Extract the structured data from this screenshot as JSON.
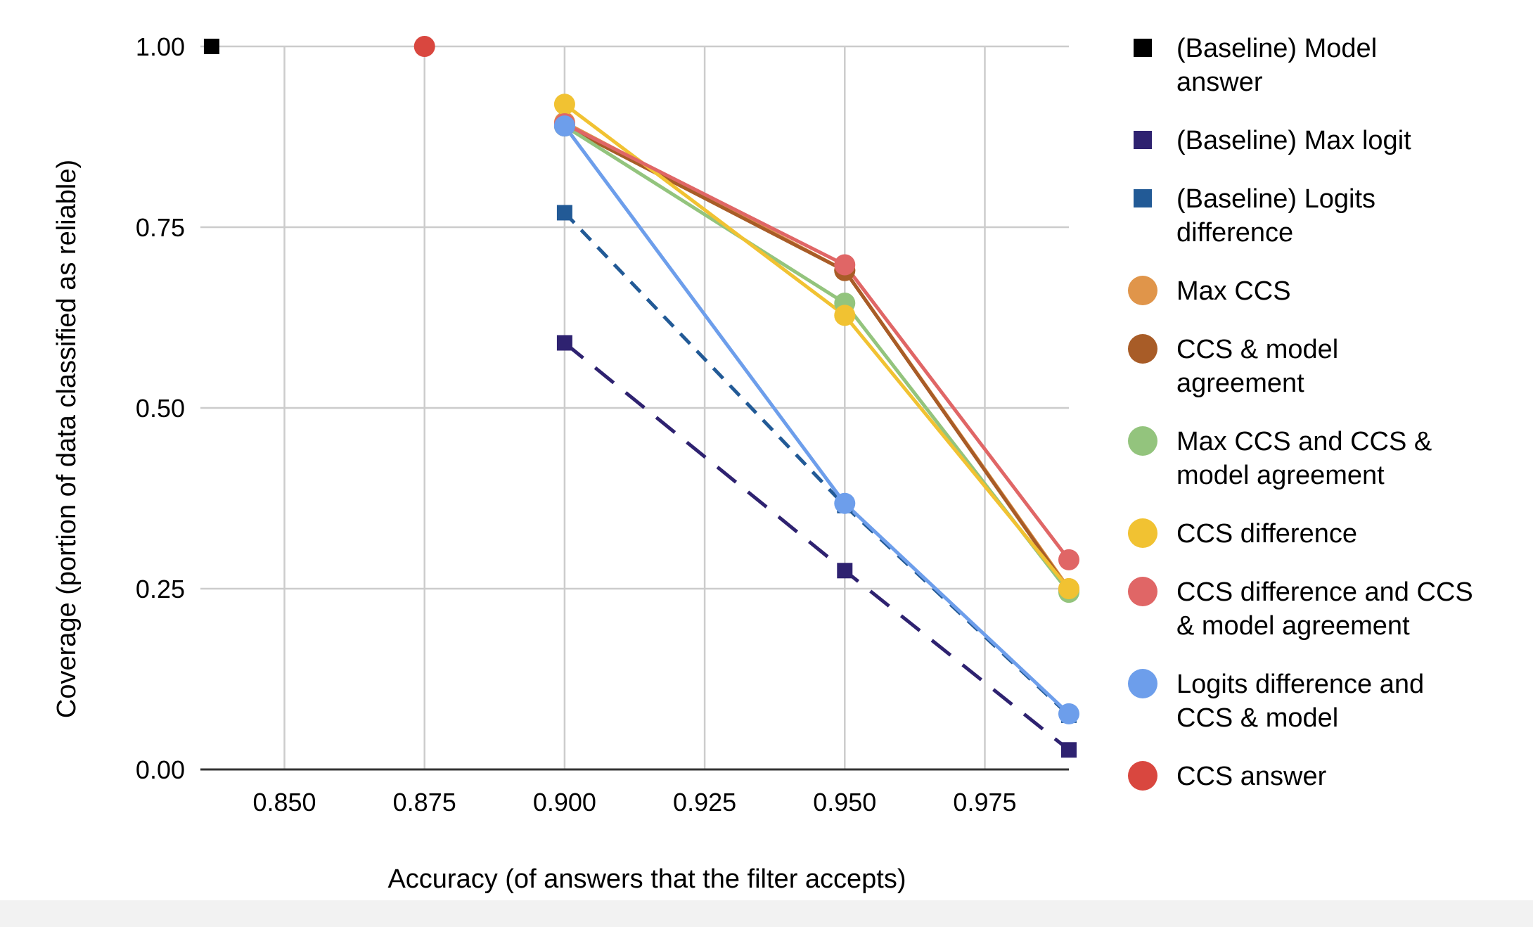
{
  "chart_data": {
    "type": "line",
    "title": "",
    "xlabel": "Accuracy (of answers that the filter accepts)",
    "ylabel": "Coverage (portion of data classified as reliable)",
    "xlim": [
      0.835,
      0.99
    ],
    "ylim": [
      0,
      1
    ],
    "x_ticks": [
      "0.850",
      "0.875",
      "0.900",
      "0.925",
      "0.950",
      "0.975"
    ],
    "x_tick_values": [
      0.85,
      0.875,
      0.9,
      0.925,
      0.95,
      0.975
    ],
    "y_ticks": [
      "0.00",
      "0.25",
      "0.50",
      "0.75",
      "1.00"
    ],
    "y_tick_values": [
      0,
      0.25,
      0.5,
      0.75,
      1.0
    ],
    "grid": true,
    "legend_position": "right",
    "series": [
      {
        "name": "(Baseline) Model answer",
        "color": "#000000",
        "marker": "square",
        "line": "none",
        "points": [
          [
            0.837,
            1.0
          ]
        ]
      },
      {
        "name": "(Baseline) Max logit",
        "color": "#2e2270",
        "marker": "square",
        "line": "long-dash",
        "points": [
          [
            0.9,
            0.59
          ],
          [
            0.95,
            0.275
          ],
          [
            0.99,
            0.027
          ]
        ]
      },
      {
        "name": "(Baseline) Logits difference",
        "color": "#225a96",
        "marker": "square",
        "line": "dash",
        "points": [
          [
            0.9,
            0.77
          ],
          [
            0.95,
            0.365
          ],
          [
            0.99,
            0.075
          ]
        ]
      },
      {
        "name": "Max CCS",
        "color": "#e0954a",
        "marker": "circle",
        "line": "solid",
        "points": [
          [
            0.9,
            0.895
          ],
          [
            0.95,
            0.69
          ],
          [
            0.99,
            0.25
          ]
        ]
      },
      {
        "name": "CCS & model agreement",
        "color": "#a85c27",
        "marker": "circle",
        "line": "solid",
        "points": [
          [
            0.9,
            0.89
          ],
          [
            0.95,
            0.69
          ],
          [
            0.99,
            0.248
          ]
        ]
      },
      {
        "name": "Max CCS and CCS & model agreement",
        "color": "#93c47d",
        "marker": "circle",
        "line": "solid",
        "points": [
          [
            0.9,
            0.89
          ],
          [
            0.95,
            0.645
          ],
          [
            0.99,
            0.245
          ]
        ]
      },
      {
        "name": "CCS difference",
        "color": "#f1c232",
        "marker": "circle",
        "line": "solid",
        "points": [
          [
            0.9,
            0.92
          ],
          [
            0.95,
            0.628
          ],
          [
            0.99,
            0.25
          ]
        ]
      },
      {
        "name": "CCS difference and CCS & model agreement",
        "color": "#e06666",
        "marker": "circle",
        "line": "solid",
        "points": [
          [
            0.9,
            0.893
          ],
          [
            0.95,
            0.698
          ],
          [
            0.99,
            0.29
          ]
        ]
      },
      {
        "name": "Logits difference and CCS & model",
        "color": "#6d9eeb",
        "marker": "circle",
        "line": "solid",
        "points": [
          [
            0.9,
            0.89
          ],
          [
            0.95,
            0.368
          ],
          [
            0.99,
            0.077
          ]
        ]
      },
      {
        "name": "CCS answer",
        "color": "#d9473f",
        "marker": "circle",
        "line": "none",
        "points": [
          [
            0.875,
            1.0
          ]
        ]
      }
    ],
    "legend": [
      {
        "lines": [
          "(Baseline) Model",
          "answer"
        ],
        "color": "#000000",
        "marker": "square"
      },
      {
        "lines": [
          "(Baseline) Max logit"
        ],
        "color": "#2e2270",
        "marker": "square"
      },
      {
        "lines": [
          "(Baseline) Logits",
          "difference"
        ],
        "color": "#225a96",
        "marker": "square"
      },
      {
        "lines": [
          "Max CCS"
        ],
        "color": "#e0954a",
        "marker": "circle"
      },
      {
        "lines": [
          "CCS & model",
          "agreement"
        ],
        "color": "#a85c27",
        "marker": "circle"
      },
      {
        "lines": [
          "Max CCS and CCS &",
          "model agreement"
        ],
        "color": "#93c47d",
        "marker": "circle"
      },
      {
        "lines": [
          "CCS difference"
        ],
        "color": "#f1c232",
        "marker": "circle"
      },
      {
        "lines": [
          "CCS difference and CCS",
          "& model agreement"
        ],
        "color": "#e06666",
        "marker": "circle"
      },
      {
        "lines": [
          "Logits difference and",
          "CCS & model"
        ],
        "color": "#6d9eeb",
        "marker": "circle"
      },
      {
        "lines": [
          "CCS answer"
        ],
        "color": "#d9473f",
        "marker": "circle"
      }
    ]
  }
}
